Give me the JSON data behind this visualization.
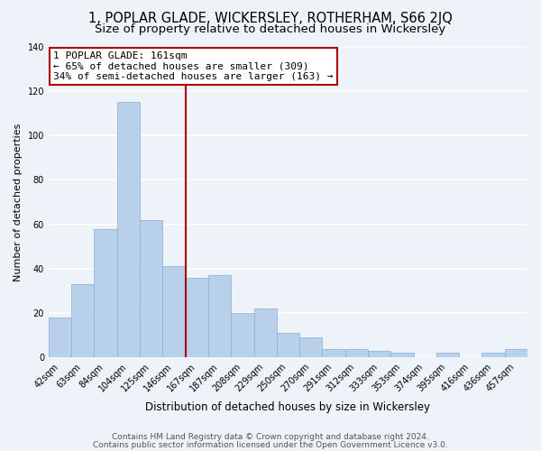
{
  "title": "1, POPLAR GLADE, WICKERSLEY, ROTHERHAM, S66 2JQ",
  "subtitle": "Size of property relative to detached houses in Wickersley",
  "xlabel": "Distribution of detached houses by size in Wickersley",
  "ylabel": "Number of detached properties",
  "bar_labels": [
    "42sqm",
    "63sqm",
    "84sqm",
    "104sqm",
    "125sqm",
    "146sqm",
    "167sqm",
    "187sqm",
    "208sqm",
    "229sqm",
    "250sqm",
    "270sqm",
    "291sqm",
    "312sqm",
    "333sqm",
    "353sqm",
    "374sqm",
    "395sqm",
    "416sqm",
    "436sqm",
    "457sqm"
  ],
  "bar_values": [
    18,
    33,
    58,
    115,
    62,
    41,
    36,
    37,
    20,
    22,
    11,
    9,
    4,
    4,
    3,
    2,
    0,
    2,
    0,
    2,
    4
  ],
  "bar_color": "#b8d0ea",
  "bar_edge_color": "#8aafd4",
  "vline_x": 5.5,
  "vline_color": "#aa0000",
  "ylim": [
    0,
    140
  ],
  "yticks": [
    0,
    20,
    40,
    60,
    80,
    100,
    120,
    140
  ],
  "annotation_line1": "1 POPLAR GLADE: 161sqm",
  "annotation_line2": "← 65% of detached houses are smaller (309)",
  "annotation_line3": "34% of semi-detached houses are larger (163) →",
  "annotation_box_color": "#ffffff",
  "annotation_box_edge": "#aa0000",
  "footer1": "Contains HM Land Registry data © Crown copyright and database right 2024.",
  "footer2": "Contains public sector information licensed under the Open Government Licence v3.0.",
  "background_color": "#eef2f9",
  "grid_color": "#ffffff",
  "title_fontsize": 10.5,
  "subtitle_fontsize": 9.5,
  "xlabel_fontsize": 8.5,
  "ylabel_fontsize": 8,
  "tick_fontsize": 7,
  "annotation_fontsize": 8,
  "footer_fontsize": 6.5
}
